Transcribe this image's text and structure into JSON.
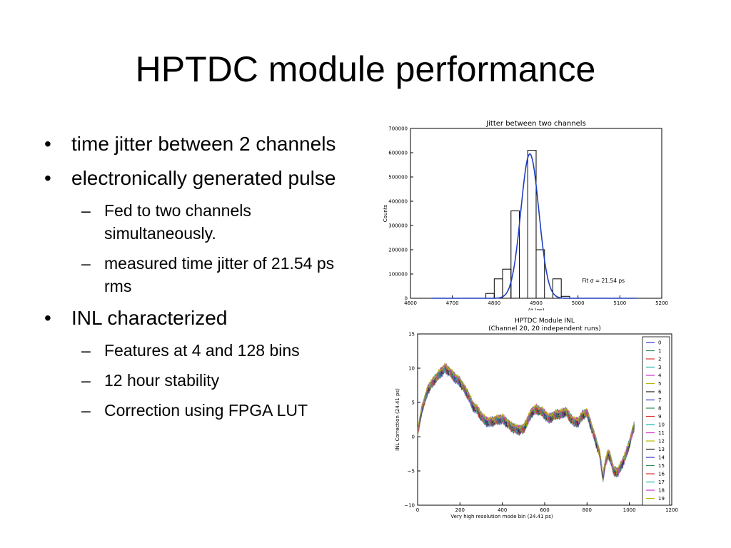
{
  "slide": {
    "title": "HPTDC module performance",
    "bullets": [
      {
        "level": 1,
        "text": "time jitter between 2 channels"
      },
      {
        "level": 1,
        "text": "electronically generated pulse"
      },
      {
        "level": 2,
        "text": "Fed to two channels simultaneously."
      },
      {
        "level": 2,
        "text": "measured time jitter of 21.54 ps rms"
      },
      {
        "level": 1,
        "text": "INL characterized"
      },
      {
        "level": 2,
        "text": "Features at 4 and 128 bins"
      },
      {
        "level": 2,
        "text": "12 hour stability"
      },
      {
        "level": 2,
        "text": "Correction  using FPGA LUT"
      }
    ]
  },
  "chart_data": [
    {
      "type": "bar",
      "title": "Jitter between two channels",
      "xlabel": "Δt (ps)",
      "ylabel": "Counts",
      "xlim": [
        4600,
        5200
      ],
      "ylim": [
        0,
        700000
      ],
      "x_ticks": [
        4600,
        4700,
        4800,
        4900,
        5000,
        5100,
        5200
      ],
      "y_ticks": [
        0,
        100000,
        200000,
        300000,
        400000,
        500000,
        600000,
        700000
      ],
      "bins": [
        {
          "x0": 4780,
          "x1": 4800,
          "value": 20000
        },
        {
          "x0": 4800,
          "x1": 4820,
          "value": 80000
        },
        {
          "x0": 4820,
          "x1": 4840,
          "value": 120000
        },
        {
          "x0": 4840,
          "x1": 4860,
          "value": 360000
        },
        {
          "x0": 4860,
          "x1": 4880,
          "value": 0
        },
        {
          "x0": 4880,
          "x1": 4900,
          "value": 610000
        },
        {
          "x0": 4900,
          "x1": 4920,
          "value": 200000
        },
        {
          "x0": 4920,
          "x1": 4940,
          "value": 0
        },
        {
          "x0": 4940,
          "x1": 4960,
          "value": 80000
        },
        {
          "x0": 4960,
          "x1": 4980,
          "value": 8000
        }
      ],
      "fit": {
        "mean": 4885,
        "sigma": 21.54,
        "amplitude": 595000,
        "x_range": [
          4650,
          5140
        ],
        "color": "#1f3fbf"
      },
      "annotation": "Fit σ = 21.54 ps"
    },
    {
      "type": "line",
      "title": "HPTDC Module INL",
      "subtitle": "(Channel 20, 20 independent runs)",
      "xlabel": "Very high resolution mode bin (24.41 ps)",
      "ylabel": "INL Correction (24.41 ps)",
      "xlim": [
        0,
        1200
      ],
      "ylim": [
        -10,
        15
      ],
      "x_ticks": [
        0,
        200,
        400,
        600,
        800,
        1000,
        1200
      ],
      "y_ticks": [
        -10,
        -5,
        0,
        5,
        10,
        15
      ],
      "y_tick_labels": [
        "−10",
        "−5",
        "0",
        "5",
        "10",
        "15"
      ],
      "x_range": [
        0,
        1023
      ],
      "base_curve": [
        [
          0,
          0.5
        ],
        [
          20,
          4
        ],
        [
          50,
          7
        ],
        [
          80,
          8.3
        ],
        [
          110,
          9.4
        ],
        [
          130,
          10
        ],
        [
          150,
          9.5
        ],
        [
          180,
          8.5
        ],
        [
          200,
          8
        ],
        [
          220,
          7
        ],
        [
          240,
          6
        ],
        [
          260,
          4.5
        ],
        [
          280,
          4
        ],
        [
          300,
          3
        ],
        [
          320,
          2.3
        ],
        [
          340,
          2.1
        ],
        [
          370,
          2.4
        ],
        [
          400,
          2.6
        ],
        [
          420,
          2.1
        ],
        [
          440,
          1.5
        ],
        [
          470,
          1
        ],
        [
          500,
          1.1
        ],
        [
          520,
          2.4
        ],
        [
          540,
          3.6
        ],
        [
          560,
          4
        ],
        [
          590,
          3.6
        ],
        [
          620,
          2.6
        ],
        [
          640,
          3
        ],
        [
          660,
          3.3
        ],
        [
          680,
          3.3
        ],
        [
          700,
          3.7
        ],
        [
          720,
          2.8
        ],
        [
          740,
          2.1
        ],
        [
          760,
          2.2
        ],
        [
          780,
          3.2
        ],
        [
          800,
          3.5
        ],
        [
          820,
          1.5
        ],
        [
          840,
          -0.5
        ],
        [
          860,
          -2.5
        ],
        [
          875,
          -6
        ],
        [
          885,
          -4
        ],
        [
          900,
          -2.5
        ],
        [
          910,
          -3
        ],
        [
          925,
          -5
        ],
        [
          945,
          -5.2
        ],
        [
          965,
          -4
        ],
        [
          985,
          -2.5
        ],
        [
          1000,
          -1
        ],
        [
          1015,
          0.8
        ],
        [
          1023,
          1.5
        ]
      ],
      "series": [
        {
          "name": "0",
          "color": "#3333cc"
        },
        {
          "name": "1",
          "color": "#2e8b57"
        },
        {
          "name": "2",
          "color": "#e03030"
        },
        {
          "name": "3",
          "color": "#20b2aa"
        },
        {
          "name": "4",
          "color": "#cc33cc"
        },
        {
          "name": "5",
          "color": "#b8b800"
        },
        {
          "name": "6",
          "color": "#222222"
        },
        {
          "name": "7",
          "color": "#3333cc"
        },
        {
          "name": "8",
          "color": "#2e8b57"
        },
        {
          "name": "9",
          "color": "#e03030"
        },
        {
          "name": "10",
          "color": "#20b2aa"
        },
        {
          "name": "11",
          "color": "#cc33cc"
        },
        {
          "name": "12",
          "color": "#b8b800"
        },
        {
          "name": "13",
          "color": "#222222"
        },
        {
          "name": "14",
          "color": "#3333cc"
        },
        {
          "name": "15",
          "color": "#2e8b57"
        },
        {
          "name": "16",
          "color": "#e03030"
        },
        {
          "name": "17",
          "color": "#20b2aa"
        },
        {
          "name": "18",
          "color": "#cc33cc"
        },
        {
          "name": "19",
          "color": "#b8b800"
        }
      ]
    }
  ]
}
